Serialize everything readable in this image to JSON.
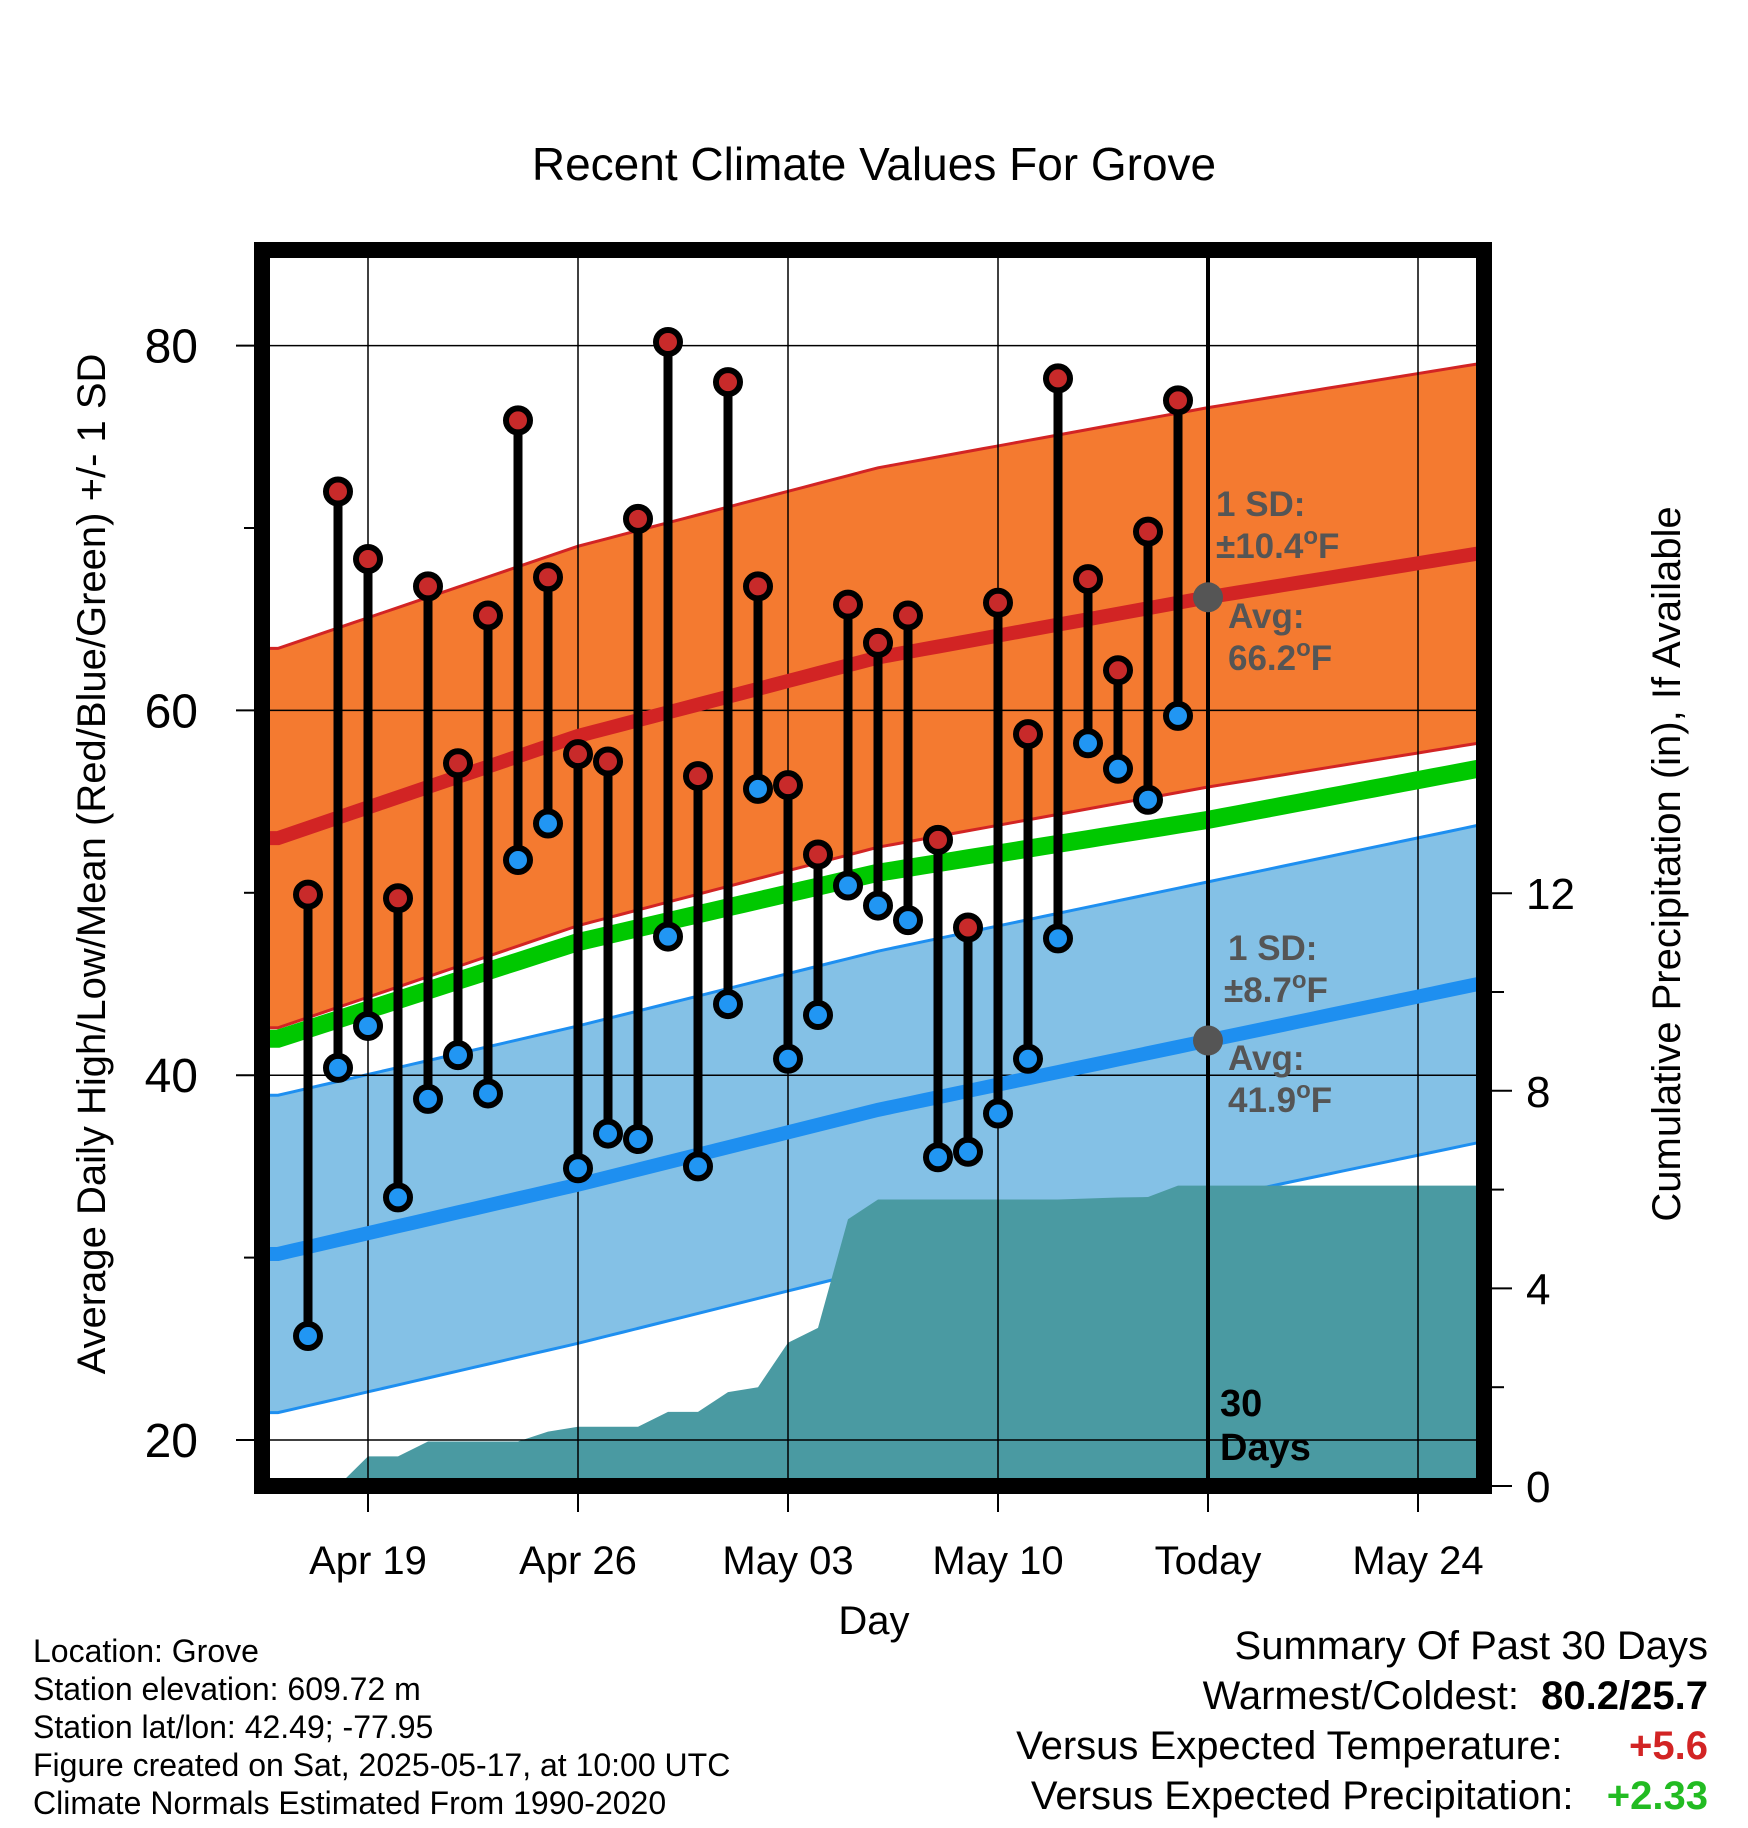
{
  "chart_data": {
    "type": "line",
    "title": "Recent Climate Values For Grove",
    "xlabel": "Day",
    "ylabel_left": "Average Daily High/Low/Mean (Red/Blue/Green) +/- 1 SD",
    "ylabel_right": "Cumulative Precipitation (in), If Available",
    "ylim_left": [
      17.5,
      86
    ],
    "ylim_right": [
      0,
      28
    ],
    "x_ticks": [
      "Apr 19",
      "Apr 26",
      "May 03",
      "May 10",
      "Today",
      "May 24"
    ],
    "y_left_ticks": [
      20,
      40,
      60,
      80
    ],
    "y_right_ticks": [
      0,
      4,
      8,
      12
    ],
    "grid": true,
    "today_marker_label": "30 Days",
    "x_start": "2025-04-16",
    "x_end": "2025-05-26",
    "today": "2025-05-17",
    "daily_obs": {
      "dates": [
        "2025-04-17",
        "2025-04-18",
        "2025-04-19",
        "2025-04-20",
        "2025-04-21",
        "2025-04-22",
        "2025-04-23",
        "2025-04-24",
        "2025-04-25",
        "2025-04-26",
        "2025-04-27",
        "2025-04-28",
        "2025-04-29",
        "2025-04-30",
        "2025-05-01",
        "2025-05-02",
        "2025-05-03",
        "2025-05-04",
        "2025-05-05",
        "2025-05-06",
        "2025-05-07",
        "2025-05-08",
        "2025-05-09",
        "2025-05-10",
        "2025-05-11",
        "2025-05-12",
        "2025-05-13",
        "2025-05-14",
        "2025-05-15",
        "2025-05-16"
      ],
      "high": [
        49.9,
        72.0,
        68.3,
        49.7,
        66.8,
        57.1,
        65.2,
        75.9,
        67.3,
        57.6,
        57.2,
        70.5,
        80.2,
        56.4,
        78.0,
        66.8,
        55.9,
        52.1,
        65.8,
        63.7,
        65.2,
        52.9,
        48.1,
        65.9,
        58.7,
        78.2,
        67.2,
        62.2,
        69.8,
        77.0
      ],
      "low": [
        25.7,
        40.4,
        42.7,
        33.3,
        38.7,
        41.1,
        39.0,
        51.8,
        53.8,
        34.9,
        36.8,
        36.5,
        47.6,
        35.0,
        43.9,
        55.7,
        40.9,
        43.3,
        50.4,
        49.3,
        48.5,
        35.5,
        35.8,
        37.9,
        40.9,
        47.5,
        58.2,
        56.8,
        55.1,
        59.7
      ]
    },
    "normals": {
      "high_avg": [
        [
          0,
          53.0
        ],
        [
          10,
          58.6
        ],
        [
          20,
          62.9
        ],
        [
          31,
          66.2
        ],
        [
          40,
          68.6
        ]
      ],
      "low_avg": [
        [
          0,
          30.2
        ],
        [
          10,
          34.0
        ],
        [
          20,
          38.1
        ],
        [
          31,
          41.9
        ],
        [
          40,
          45.0
        ]
      ],
      "mean_avg": [
        [
          0,
          42.0
        ],
        [
          10,
          47.3
        ],
        [
          20,
          51.1
        ],
        [
          31,
          54.0
        ],
        [
          40,
          56.8
        ]
      ],
      "high_sd": 10.4,
      "low_sd": 8.7
    },
    "cumulative_precip": {
      "dates": [
        "2025-04-17",
        "2025-04-18",
        "2025-04-19",
        "2025-04-20",
        "2025-04-21",
        "2025-04-22",
        "2025-04-23",
        "2025-04-24",
        "2025-04-25",
        "2025-04-26",
        "2025-04-27",
        "2025-04-28",
        "2025-04-29",
        "2025-04-30",
        "2025-05-01",
        "2025-05-02",
        "2025-05-03",
        "2025-05-04",
        "2025-05-05",
        "2025-05-06",
        "2025-05-07",
        "2025-05-08",
        "2025-05-09",
        "2025-05-10",
        "2025-05-11",
        "2025-05-12",
        "2025-05-13",
        "2025-05-14",
        "2025-05-15",
        "2025-05-16",
        "2025-05-26"
      ],
      "values": [
        0.0,
        0.0,
        0.6,
        0.6,
        0.9,
        0.9,
        0.9,
        0.9,
        1.1,
        1.2,
        1.2,
        1.2,
        1.5,
        1.5,
        1.9,
        2.0,
        2.9,
        3.2,
        5.4,
        5.8,
        5.8,
        5.8,
        5.8,
        5.8,
        5.8,
        5.8,
        5.82,
        5.84,
        5.85,
        6.08,
        6.08
      ]
    },
    "annotations": {
      "high_sd_label": "1 SD:",
      "high_sd_value": "±10.4°F",
      "high_avg_label": "Avg:",
      "high_avg_value": "66.2°F",
      "low_sd_label": "1 SD:",
      "low_sd_value": "±8.7°F",
      "low_avg_label": "Avg:",
      "low_avg_value": "41.9°F"
    },
    "colors": {
      "high_band": "#f47a30",
      "high_line": "#d22424",
      "low_band": "#84c1e6",
      "low_line": "#1e8ff0",
      "mean_line": "#00c800",
      "precip": "#4a9aa2",
      "high_dot": "#c82a2a",
      "low_dot": "#2196f3",
      "annotation": "#555555"
    }
  },
  "footer": {
    "location": "Location: Grove",
    "elevation": "Station elevation: 609.72 m",
    "latlon": "Station lat/lon: 42.49; -77.95",
    "created": "Figure created on Sat, 2025-05-17, at 10:00 UTC",
    "normals": "Climate Normals Estimated From 1990-2020"
  },
  "summary": {
    "title": "Summary Of Past 30 Days",
    "warm_cold_label": "Warmest/Coldest:",
    "warm_cold_value": "80.2/25.7",
    "temp_label": "Versus Expected Temperature:",
    "temp_value": "+5.6",
    "temp_color": "#d22424",
    "precip_label": "Versus Expected Precipitation:",
    "precip_value": "+2.33",
    "precip_color": "#22bb22"
  }
}
